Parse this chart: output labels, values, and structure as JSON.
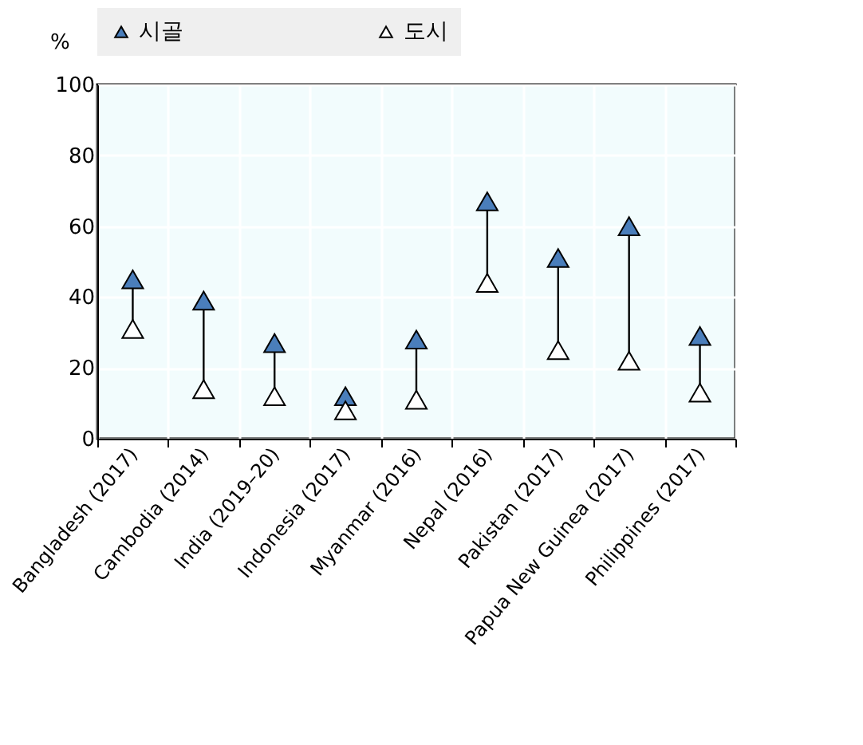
{
  "chart_data": {
    "type": "scatter",
    "categories": [
      "Bangladesh (2017)",
      "Cambodia (2014)",
      "India (2019–20)",
      "Indonesia (2017)",
      "Myanmar (2016)",
      "Nepal (2016)",
      "Pakistan (2017)",
      "Papua New Guinea (2017)",
      "Philippines (2017)"
    ],
    "series": [
      {
        "name": "시골",
        "color": "#4a7ebb",
        "values": [
          45,
          39,
          27,
          12,
          28,
          67,
          51,
          60,
          29
        ]
      },
      {
        "name": "도시",
        "color": "#ffffff",
        "values": [
          31,
          14,
          12,
          8,
          11,
          44,
          25,
          22,
          13
        ]
      }
    ],
    "ylabel": "%",
    "ylim": [
      0,
      100
    ],
    "yticks": [
      0,
      20,
      40,
      60,
      80,
      100
    ],
    "grid": true,
    "legend": "top",
    "marker": "triangle"
  }
}
